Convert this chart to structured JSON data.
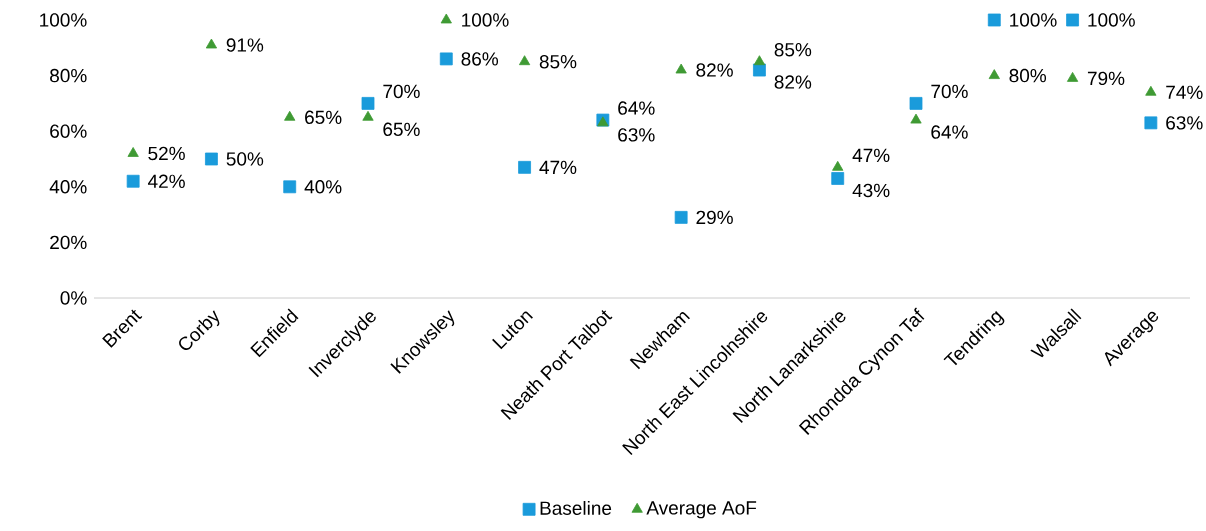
{
  "chart_data": {
    "type": "scatter",
    "categories": [
      "Brent",
      "Corby",
      "Enfield",
      "Inverclyde",
      "Knowsley",
      "Luton",
      "Neath Port Talbot",
      "Newham",
      "North East Lincolnshire",
      "North Lanarkshire",
      "Rhondda Cynon Taf",
      "Tendring",
      "Walsall",
      "Average"
    ],
    "series": [
      {
        "name": "Baseline",
        "color": "#1a9bdb",
        "marker": "square",
        "values": [
          42,
          50,
          40,
          70,
          86,
          47,
          64,
          29,
          82,
          43,
          70,
          100,
          100,
          63
        ],
        "value_labels": [
          "42%",
          "50%",
          "40%",
          "70%",
          "86%",
          "47%",
          "64%",
          "29%",
          "82%",
          "43%",
          "70%",
          "100%",
          "100%",
          "63%"
        ]
      },
      {
        "name": "Average AoF",
        "color": "#3f9a34",
        "marker": "triangle",
        "values": [
          52,
          91,
          65,
          65,
          100,
          85,
          63,
          82,
          85,
          47,
          64,
          80,
          79,
          74
        ],
        "value_labels": [
          "52%",
          "91%",
          "65%",
          "65%",
          "100%",
          "85%",
          "63%",
          "82%",
          "85%",
          "47%",
          "64%",
          "80%",
          "79%",
          "74%"
        ]
      }
    ],
    "ylim": [
      0,
      100
    ],
    "yticks": [
      {
        "value": 0,
        "label": "0%"
      },
      {
        "value": 20,
        "label": "20%"
      },
      {
        "value": 40,
        "label": "40%"
      },
      {
        "value": 60,
        "label": "60%"
      },
      {
        "value": 80,
        "label": "80%"
      },
      {
        "value": 100,
        "label": "100%"
      }
    ],
    "grid": false,
    "legend": "bottom"
  }
}
